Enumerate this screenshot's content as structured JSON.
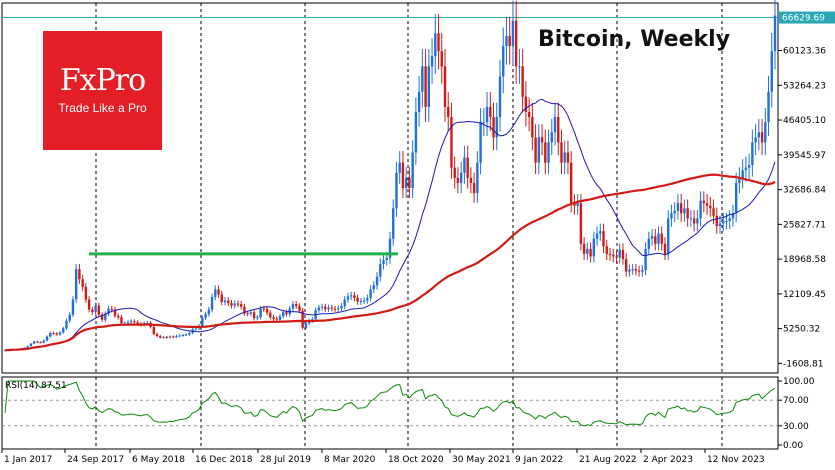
{
  "chart_data": {
    "type": "candlestick",
    "title": "Bitcoin, Weekly",
    "price_axis": {
      "ticks": [
        "60123.36",
        "53264.23",
        "46405.10",
        "39545.97",
        "32686.84",
        "25827.71",
        "18968.58",
        "12109.45",
        "5250.32",
        "-1608.81"
      ],
      "current_price": "66629.69",
      "range": [
        -3500,
        69500
      ]
    },
    "x_axis": {
      "labels": [
        "1 Jan 2017",
        "24 Sep 2017",
        "6 May 2018",
        "16 Dec 2018",
        "28 Jul 2019",
        "8 Mar 2020",
        "18 Oct 2020",
        "30 May 2021",
        "9 Jan 2022",
        "21 Aug 2022",
        "2 Apr 2023",
        "12 Nov 2023"
      ]
    },
    "series": [
      {
        "name": "price",
        "color": "#1f6fdc",
        "values": [
          1000,
          1050,
          1100,
          1200,
          1250,
          1350,
          1500,
          1800,
          2300,
          2700,
          2600,
          2500,
          2900,
          3700,
          4400,
          4300,
          4100,
          4500,
          5300,
          6800,
          8000,
          11000,
          17000,
          15000,
          13500,
          11000,
          9000,
          8500,
          9800,
          8000,
          7000,
          8200,
          9200,
          9000,
          7800,
          7500,
          6300,
          6300,
          6500,
          6700,
          6500,
          6200,
          6000,
          6300,
          6400,
          5600,
          4200,
          3800,
          3500,
          3600,
          3500,
          3700,
          3600,
          3800,
          3900,
          4000,
          4100,
          4400,
          5100,
          5300,
          5800,
          7400,
          8100,
          9000,
          11500,
          13000,
          12000,
          10500,
          10800,
          10300,
          9800,
          10200,
          10100,
          9600,
          8300,
          8200,
          8500,
          7300,
          7500,
          9200,
          9100,
          8400,
          7500,
          7200,
          7000,
          7700,
          8500,
          8100,
          9200,
          10100,
          9700,
          8800,
          5400,
          6300,
          6800,
          7100,
          8900,
          9400,
          9600,
          9100,
          9400,
          9200,
          9100,
          9300,
          9700,
          11000,
          11600,
          11800,
          11300,
          10600,
          10700,
          10800,
          11300,
          13000,
          13800,
          15500,
          18000,
          18800,
          19200,
          23000,
          29000,
          36000,
          38000,
          33000,
          35000,
          33000,
          40000,
          48000,
          52000,
          57000,
          49000,
          57000,
          59000,
          63500,
          60000,
          57000,
          49000,
          47000,
          37000,
          35000,
          34000,
          36000,
          39000,
          35000,
          34000,
          32000,
          38000,
          46000,
          46000,
          49000,
          47000,
          43000,
          47000,
          55000,
          61000,
          63000,
          61000,
          66000,
          57000,
          57000,
          51000,
          48000,
          47000,
          43000,
          38000,
          43000,
          42000,
          38000,
          42000,
          44000,
          47000,
          42000,
          38000,
          40000,
          38000,
          30000,
          29500,
          30000,
          22000,
          20000,
          21000,
          19500,
          23000,
          24000,
          24500,
          21500,
          20000,
          19800,
          19500,
          19300,
          20800,
          19000,
          16500,
          16900,
          17000,
          16700,
          16500,
          16800,
          21000,
          23000,
          23500,
          22000,
          24000,
          22000,
          20000,
          27000,
          28000,
          28500,
          30000,
          28000,
          29000,
          27000,
          27000,
          26000,
          27000,
          30500,
          30000,
          29500,
          29000,
          27500,
          25500,
          26000,
          26500,
          26500,
          27000,
          28000,
          34000,
          35000,
          36500,
          37000,
          37500,
          42000,
          43000,
          44000,
          42000,
          46000,
          52000,
          60000,
          67000
        ]
      },
      {
        "name": "fast MA",
        "color": "#1a1ab4"
      },
      {
        "name": "slow MA",
        "color": "#d21a14"
      }
    ],
    "annotations": [
      {
        "type": "horizontal line",
        "value": 20000,
        "color": "#22b04a",
        "from": "Dec 2017",
        "to": "Dec 2020"
      }
    ],
    "rsi": {
      "label": "RSI(14) 87.51",
      "ticks": [
        "100.00",
        "70.00",
        "30.00",
        "0.00"
      ],
      "levels": [
        70,
        30
      ],
      "color": "#0a8a0a"
    }
  },
  "logo": {
    "name": "FxPro",
    "tagline": "Trade Like a Pro"
  }
}
